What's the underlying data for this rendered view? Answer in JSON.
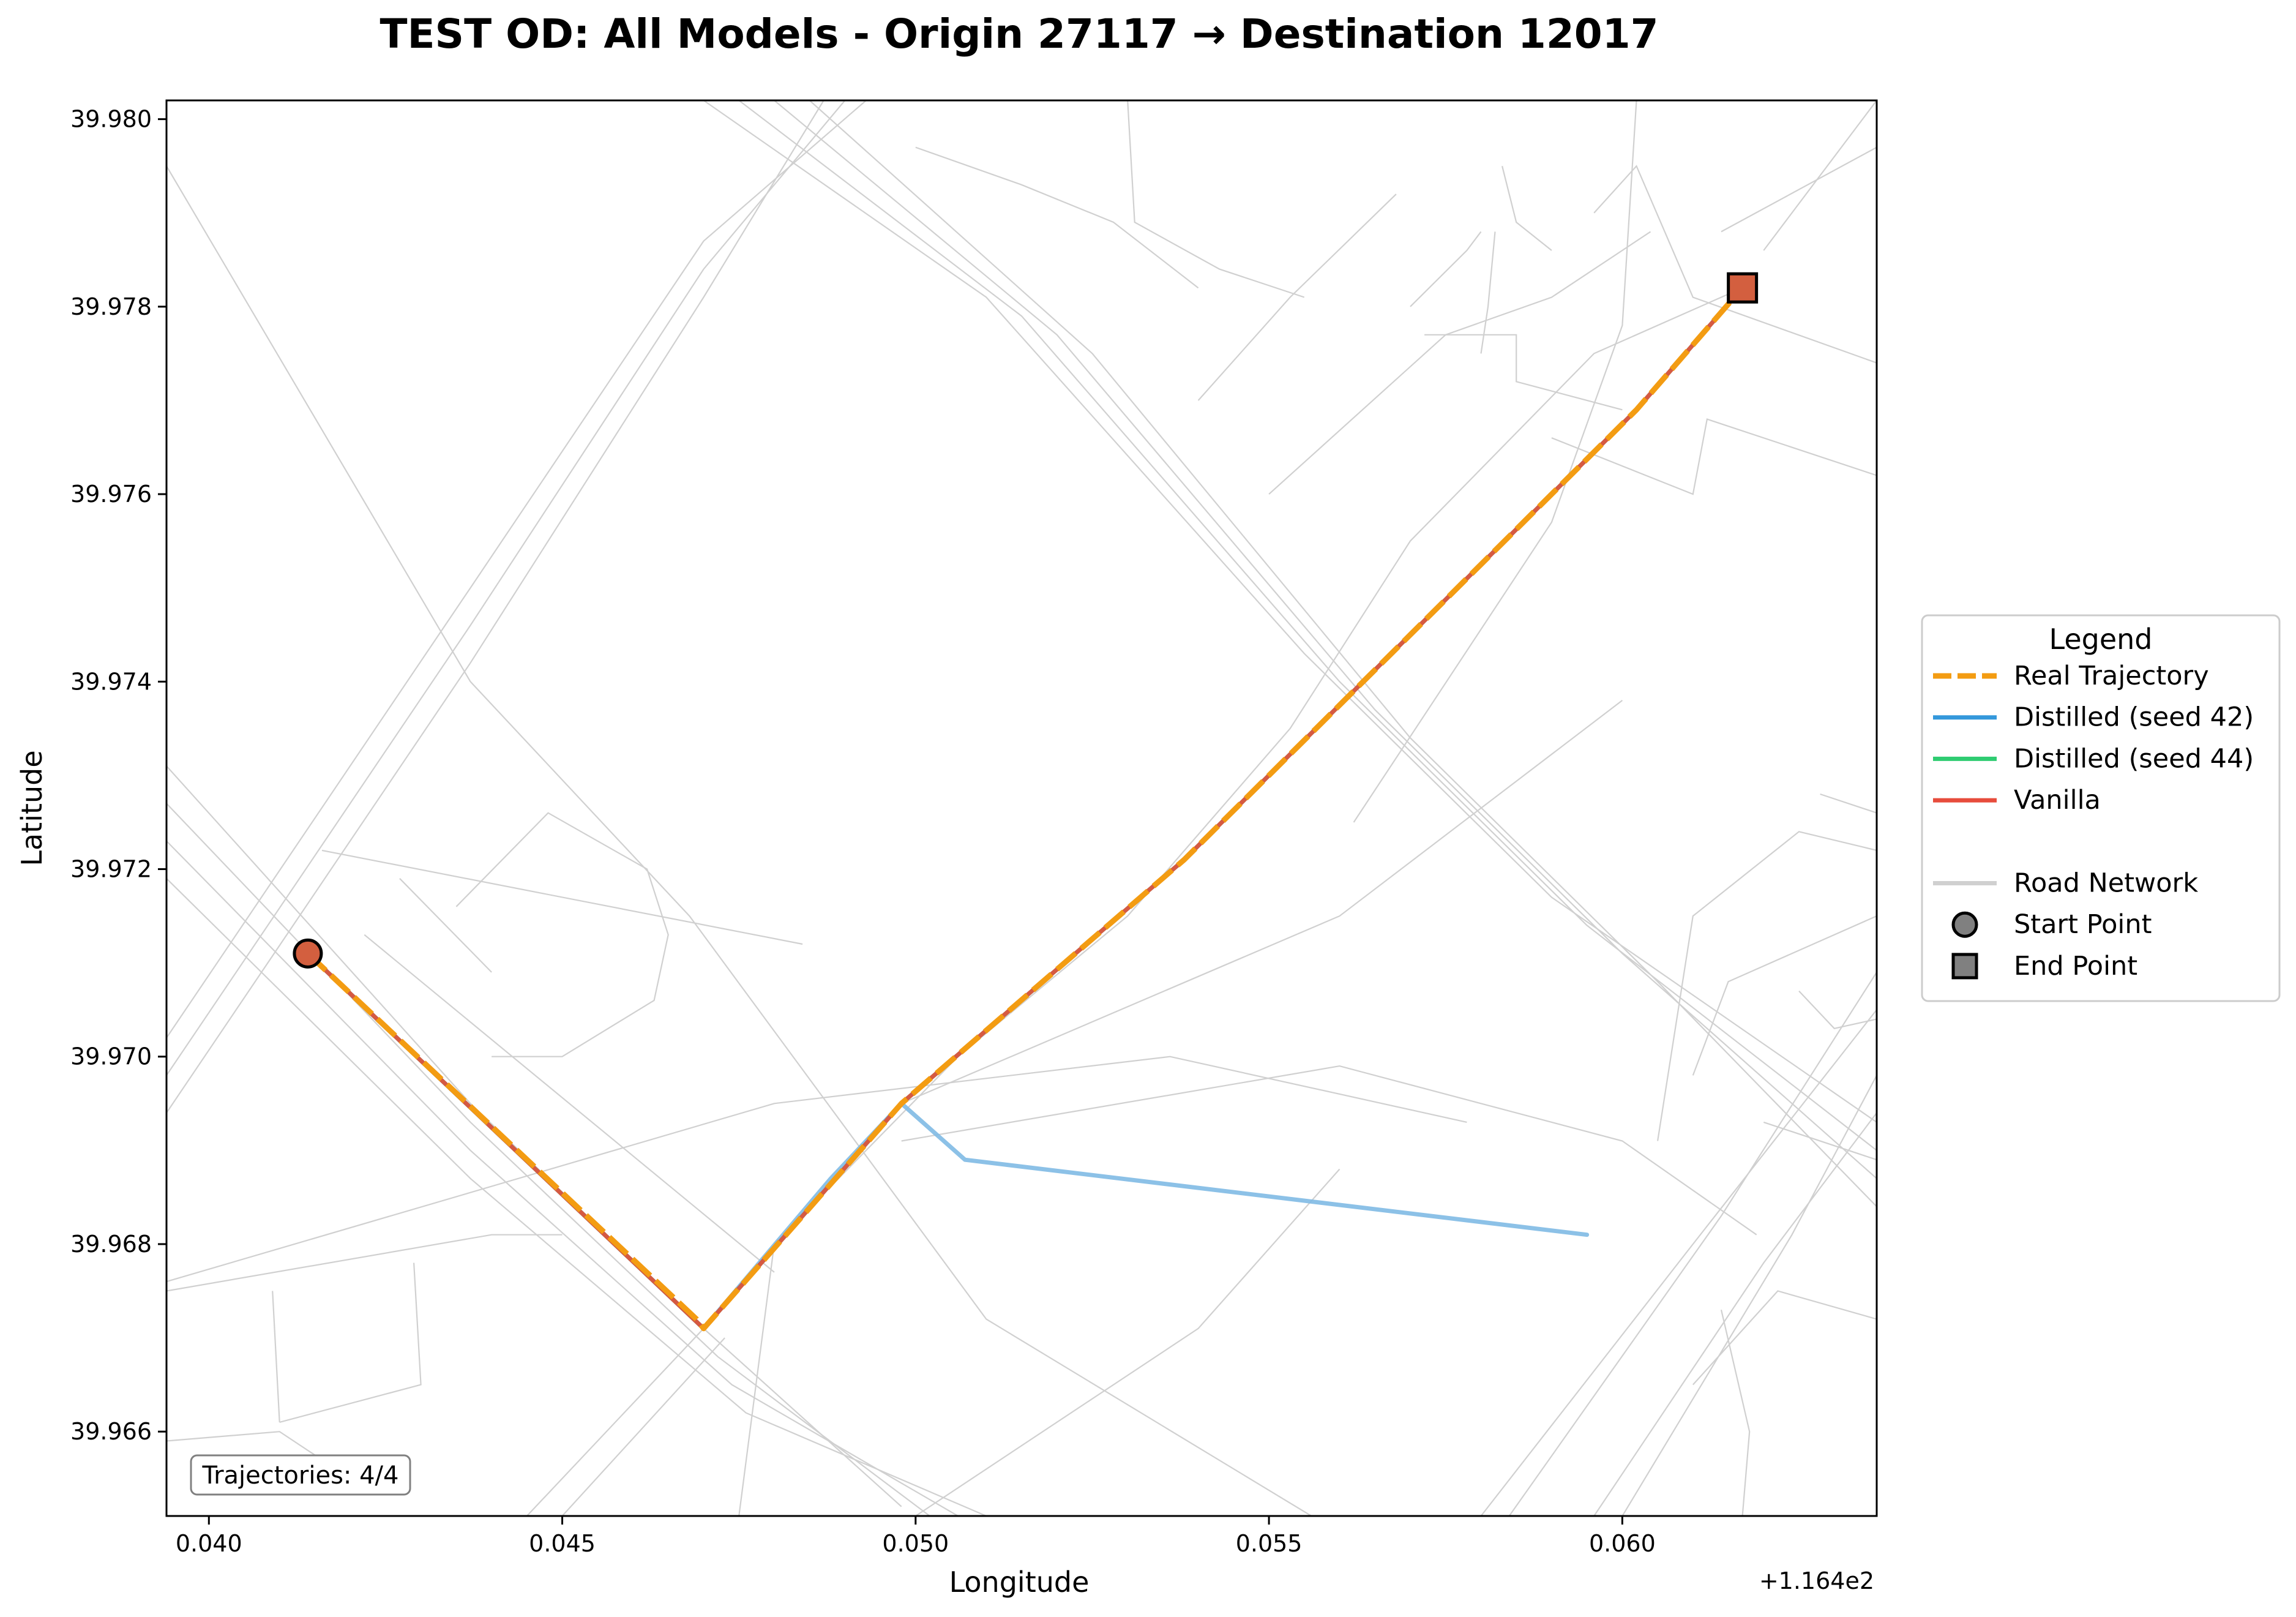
{
  "chart_data": {
    "type": "line",
    "title": "TEST OD: All Models - Origin 27117 → Destination 12017",
    "xlabel": "Longitude",
    "ylabel": "Latitude",
    "x_offset_label": "+1.164e2",
    "xlim": [
      0.0394,
      0.0636
    ],
    "ylim": [
      39.9651,
      39.9802
    ],
    "x_ticks": [
      0.04,
      0.045,
      0.05,
      0.055,
      0.06
    ],
    "x_tick_labels": [
      "0.040",
      "0.045",
      "0.050",
      "0.055",
      "0.060"
    ],
    "y_ticks": [
      39.966,
      39.968,
      39.97,
      39.972,
      39.974,
      39.976,
      39.978,
      39.98
    ],
    "y_tick_labels": [
      "39.966",
      "39.968",
      "39.970",
      "39.972",
      "39.974",
      "39.976",
      "39.978",
      "39.980"
    ],
    "grid": false,
    "legend_position": "outside-right",
    "annotation": "Trajectories: 4/4",
    "series": [
      {
        "name": "Distilled (seed 42)",
        "color": "#3498db",
        "display_color": "#7fbae4",
        "style": "solid",
        "x": [
          0.0414,
          0.047,
          0.0488,
          0.0498,
          0.0507,
          0.0595
        ],
        "y": [
          39.9711,
          39.9671,
          39.9687,
          39.9695,
          39.9689,
          39.9681
        ]
      },
      {
        "name": "Distilled (seed 44)",
        "color": "#2ecc71",
        "style": "solid",
        "x": [
          0.0414,
          0.047,
          0.0498,
          0.0538,
          0.057,
          0.0602,
          0.0617
        ],
        "y": [
          39.9711,
          39.9671,
          39.9695,
          39.9721,
          39.9745,
          39.9769,
          39.9782
        ]
      },
      {
        "name": "Vanilla",
        "color": "#e74c3c",
        "style": "solid",
        "x": [
          0.0414,
          0.047,
          0.0498,
          0.0538,
          0.057,
          0.0602,
          0.0617
        ],
        "y": [
          39.9711,
          39.9671,
          39.9695,
          39.9721,
          39.9745,
          39.9769,
          39.9782
        ]
      },
      {
        "name": "Real Trajectory",
        "color": "#f39c12",
        "style": "dashed",
        "x": [
          0.0414,
          0.0469,
          0.047,
          0.0498,
          0.0538,
          0.057,
          0.0602,
          0.0617
        ],
        "y": [
          39.9711,
          39.9672,
          39.9671,
          39.9695,
          39.9721,
          39.9745,
          39.9769,
          39.9782
        ]
      }
    ],
    "start_point": {
      "x": 0.0414,
      "y": 39.9711,
      "color": "#d35f3f"
    },
    "end_point": {
      "x": 0.0617,
      "y": 39.9782,
      "color": "#d35f3f"
    },
    "road_network_color": "#d0d0d0",
    "road_network": [
      [
        [
          0.0394,
          39.9795
        ],
        [
          0.0437,
          39.974
        ],
        [
          0.0468,
          39.9715
        ],
        [
          0.051,
          39.9672
        ],
        [
          0.0556,
          39.9651
        ]
      ],
      [
        [
          0.0394,
          39.9731
        ],
        [
          0.0437,
          39.9695
        ],
        [
          0.047,
          39.9671
        ],
        [
          0.0498,
          39.9652
        ]
      ],
      [
        [
          0.0394,
          39.9727
        ],
        [
          0.0437,
          39.9693
        ],
        [
          0.0472,
          39.9668
        ],
        [
          0.0502,
          39.9651
        ]
      ],
      [
        [
          0.0394,
          39.9723
        ],
        [
          0.0437,
          39.969
        ],
        [
          0.0474,
          39.9665
        ],
        [
          0.0506,
          39.9651
        ]
      ],
      [
        [
          0.0394,
          39.9719
        ],
        [
          0.0437,
          39.9687
        ],
        [
          0.0476,
          39.9662
        ],
        [
          0.051,
          39.9651
        ]
      ],
      [
        [
          0.0394,
          39.9694
        ],
        [
          0.0437,
          39.9742
        ],
        [
          0.047,
          39.9781
        ],
        [
          0.0487,
          39.9802
        ]
      ],
      [
        [
          0.0394,
          39.9698
        ],
        [
          0.0437,
          39.9746
        ],
        [
          0.047,
          39.9784
        ],
        [
          0.049,
          39.9802
        ]
      ],
      [
        [
          0.0394,
          39.9702
        ],
        [
          0.0437,
          39.975
        ],
        [
          0.047,
          39.9787
        ],
        [
          0.0493,
          39.9802
        ]
      ],
      [
        [
          0.0445,
          39.9651
        ],
        [
          0.047,
          39.9671
        ],
        [
          0.047,
          39.9671
        ]
      ],
      [
        [
          0.045,
          39.9651
        ],
        [
          0.0473,
          39.967
        ]
      ],
      [
        [
          0.047,
          39.9802
        ],
        [
          0.051,
          39.9781
        ],
        [
          0.0555,
          39.9743
        ],
        [
          0.059,
          39.9717
        ],
        [
          0.0636,
          39.9693
        ]
      ],
      [
        [
          0.0475,
          39.9802
        ],
        [
          0.0515,
          39.9779
        ],
        [
          0.056,
          39.974
        ],
        [
          0.0595,
          39.9714
        ],
        [
          0.0636,
          39.969
        ]
      ],
      [
        [
          0.048,
          39.9802
        ],
        [
          0.052,
          39.9777
        ],
        [
          0.0565,
          39.9737
        ],
        [
          0.06,
          39.9711
        ],
        [
          0.0636,
          39.9687
        ]
      ],
      [
        [
          0.0485,
          39.9802
        ],
        [
          0.0525,
          39.9775
        ],
        [
          0.057,
          39.9734
        ],
        [
          0.0605,
          39.9708
        ],
        [
          0.0636,
          39.9684
        ]
      ],
      [
        [
          0.058,
          39.9651
        ],
        [
          0.061,
          39.968
        ],
        [
          0.0636,
          39.9705
        ]
      ],
      [
        [
          0.0584,
          39.9651
        ],
        [
          0.0614,
          39.9683
        ],
        [
          0.0636,
          39.9709
        ]
      ],
      [
        [
          0.0596,
          39.9651
        ],
        [
          0.062,
          39.9678
        ],
        [
          0.0636,
          39.9694
        ]
      ],
      [
        [
          0.06,
          39.9651
        ],
        [
          0.0624,
          39.9681
        ],
        [
          0.0636,
          39.9698
        ]
      ],
      [
        [
          0.0498,
          39.9695
        ],
        [
          0.056,
          39.9715
        ],
        [
          0.06,
          39.9738
        ]
      ],
      [
        [
          0.0498,
          39.9691
        ],
        [
          0.056,
          39.9699
        ],
        [
          0.06,
          39.9691
        ],
        [
          0.0619,
          39.9681
        ]
      ],
      [
        [
          0.0394,
          39.9676
        ],
        [
          0.048,
          39.9695
        ],
        [
          0.0536,
          39.97
        ],
        [
          0.0578,
          39.9693
        ]
      ],
      [
        [
          0.0394,
          39.9675
        ],
        [
          0.044,
          39.9681
        ],
        [
          0.045,
          39.9681
        ]
      ],
      [
        [
          0.0409,
          39.9675
        ],
        [
          0.041,
          39.9661
        ]
      ],
      [
        [
          0.0429,
          39.9678
        ],
        [
          0.043,
          39.9665
        ],
        [
          0.041,
          39.9661
        ]
      ],
      [
        [
          0.0394,
          39.9659
        ],
        [
          0.041,
          39.966
        ],
        [
          0.042,
          39.9655
        ]
      ],
      [
        [
          0.0484,
          39.9712
        ],
        [
          0.0416,
          39.9722
        ]
      ],
      [
        [
          0.0427,
          39.9719
        ],
        [
          0.044,
          39.9709
        ]
      ],
      [
        [
          0.0422,
          39.9713
        ],
        [
          0.048,
          39.9677
        ]
      ],
      [
        [
          0.0435,
          39.9716
        ],
        [
          0.0448,
          39.9726
        ],
        [
          0.0462,
          39.972
        ],
        [
          0.0465,
          39.9713
        ],
        [
          0.0463,
          39.9706
        ],
        [
          0.045,
          39.97
        ],
        [
          0.044,
          39.97
        ]
      ],
      [
        [
          0.0475,
          39.9651
        ],
        [
          0.048,
          39.968
        ],
        [
          0.0506,
          39.97
        ],
        [
          0.053,
          39.9715
        ],
        [
          0.0553,
          39.9735
        ],
        [
          0.057,
          39.9755
        ],
        [
          0.0596,
          39.9775
        ],
        [
          0.0617,
          39.9782
        ]
      ],
      [
        [
          0.05,
          39.9651
        ],
        [
          0.054,
          39.9671
        ],
        [
          0.056,
          39.9688
        ]
      ],
      [
        [
          0.0562,
          39.9725
        ],
        [
          0.059,
          39.9757
        ],
        [
          0.06,
          39.9778
        ],
        [
          0.0602,
          39.9802
        ]
      ],
      [
        [
          0.055,
          39.976
        ],
        [
          0.0575,
          39.9777
        ],
        [
          0.059,
          39.9781
        ],
        [
          0.0604,
          39.9788
        ]
      ],
      [
        [
          0.054,
          39.977
        ],
        [
          0.0553,
          39.9781
        ],
        [
          0.0568,
          39.9792
        ]
      ],
      [
        [
          0.053,
          39.9802
        ],
        [
          0.0531,
          39.9789
        ],
        [
          0.0543,
          39.9784
        ],
        [
          0.0555,
          39.9781
        ]
      ],
      [
        [
          0.054,
          39.9782
        ],
        [
          0.0528,
          39.9789
        ],
        [
          0.0515,
          39.9793
        ],
        [
          0.05,
          39.9797
        ]
      ],
      [
        [
          0.057,
          39.978
        ],
        [
          0.0578,
          39.9786
        ],
        [
          0.058,
          39.9788
        ]
      ],
      [
        [
          0.0572,
          39.9777
        ],
        [
          0.0585,
          39.9777
        ],
        [
          0.0585,
          39.9772
        ],
        [
          0.06,
          39.9769
        ]
      ],
      [
        [
          0.0583,
          39.9795
        ],
        [
          0.0585,
          39.9789
        ],
        [
          0.059,
          39.9786
        ]
      ],
      [
        [
          0.0596,
          39.979
        ],
        [
          0.0602,
          39.9795
        ],
        [
          0.061,
          39.9781
        ],
        [
          0.0636,
          39.9774
        ]
      ],
      [
        [
          0.062,
          39.9786
        ],
        [
          0.0636,
          39.9802
        ]
      ],
      [
        [
          0.0614,
          39.9788
        ],
        [
          0.0636,
          39.9797
        ]
      ],
      [
        [
          0.0605,
          39.9691
        ],
        [
          0.061,
          39.9715
        ],
        [
          0.0625,
          39.9724
        ],
        [
          0.0636,
          39.9722
        ]
      ],
      [
        [
          0.0636,
          39.9715
        ],
        [
          0.0615,
          39.9708
        ],
        [
          0.061,
          39.9698
        ]
      ],
      [
        [
          0.0625,
          39.9707
        ],
        [
          0.063,
          39.9703
        ],
        [
          0.0636,
          39.9704
        ]
      ],
      [
        [
          0.061,
          39.9665
        ],
        [
          0.0622,
          39.9675
        ],
        [
          0.0636,
          39.9672
        ]
      ],
      [
        [
          0.0614,
          39.9673
        ],
        [
          0.0618,
          39.966
        ],
        [
          0.0617,
          39.9651
        ]
      ],
      [
        [
          0.062,
          39.9693
        ],
        [
          0.0636,
          39.9689
        ]
      ],
      [
        [
          0.0628,
          39.9728
        ],
        [
          0.0636,
          39.9726
        ]
      ],
      [
        [
          0.059,
          39.9766
        ],
        [
          0.061,
          39.976
        ],
        [
          0.0612,
          39.9768
        ],
        [
          0.0636,
          39.9762
        ]
      ],
      [
        [
          0.058,
          39.9775
        ],
        [
          0.0581,
          39.978
        ],
        [
          0.0582,
          39.9788
        ]
      ]
    ]
  },
  "legend": {
    "title": "Legend",
    "items": [
      {
        "label": "Real Trajectory",
        "symbol": "dashed-line",
        "color": "#f39c12"
      },
      {
        "label": "Distilled (seed 42)",
        "symbol": "line",
        "color": "#3498db"
      },
      {
        "label": "Distilled (seed 44)",
        "symbol": "line",
        "color": "#2ecc71"
      },
      {
        "label": "Vanilla",
        "symbol": "line",
        "color": "#e74c3c"
      },
      {
        "label": "",
        "symbol": "none",
        "color": ""
      },
      {
        "label": "Road Network",
        "symbol": "line",
        "color": "#d0d0d0"
      },
      {
        "label": "Start Point",
        "symbol": "circle",
        "color": "#808080"
      },
      {
        "label": "End Point",
        "symbol": "square",
        "color": "#808080"
      }
    ]
  }
}
